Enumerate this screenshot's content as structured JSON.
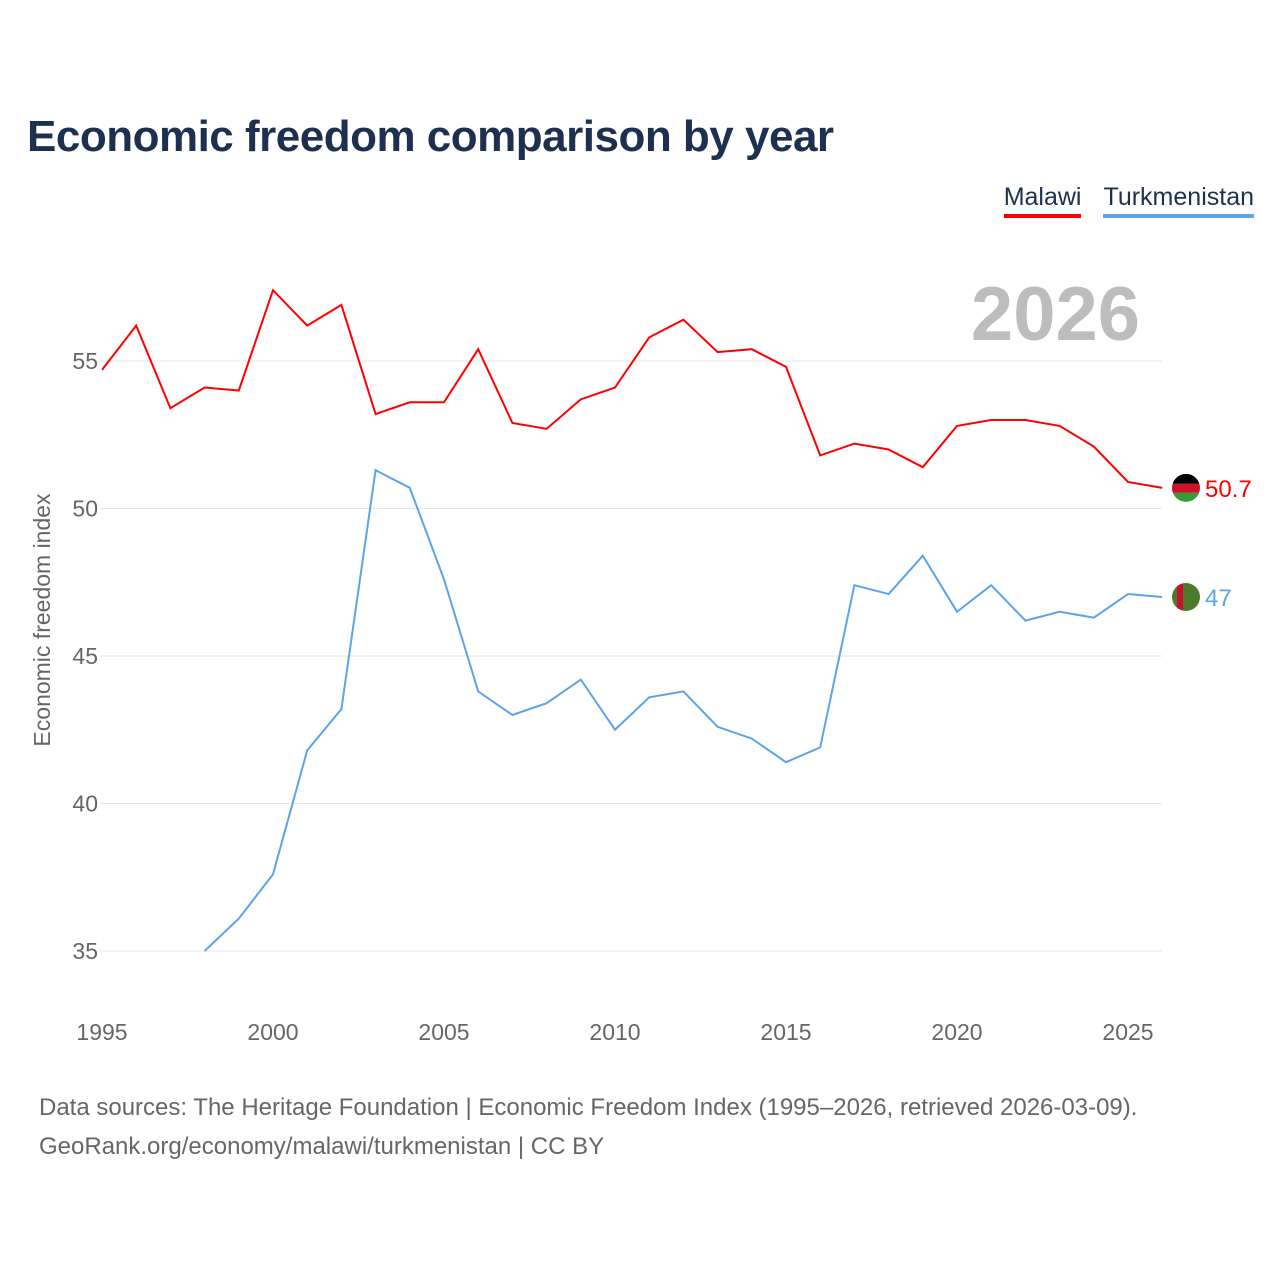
{
  "title": "Economic freedom comparison by year",
  "year_label": "2026",
  "source_line1": "Data sources: The Heritage Foundation | Economic Freedom Index (1995–2026, retrieved 2026-03-09).",
  "source_line2": "GeoRank.org/economy/malawi/turkmenistan | CC BY",
  "chart_data": {
    "type": "line",
    "title": "Economic freedom comparison by year",
    "xlabel": "",
    "ylabel": "Economic freedom index",
    "xlim": [
      1995,
      2026
    ],
    "ylim": [
      35,
      57.5
    ],
    "xticks": [
      1995,
      2000,
      2005,
      2010,
      2015,
      2020,
      2025
    ],
    "yticks": [
      35,
      40,
      45,
      50,
      55
    ],
    "grid": true,
    "legend_placement": "top-right",
    "series": [
      {
        "name": "Malawi",
        "color": "#ff0000",
        "end_label": "50.7",
        "flag": "malawi-flag",
        "x": [
          1995,
          1996,
          1997,
          1998,
          1999,
          2000,
          2001,
          2002,
          2003,
          2004,
          2005,
          2006,
          2007,
          2008,
          2009,
          2010,
          2011,
          2012,
          2013,
          2014,
          2015,
          2016,
          2017,
          2018,
          2019,
          2020,
          2021,
          2022,
          2023,
          2024,
          2025,
          2026
        ],
        "y": [
          54.7,
          56.2,
          53.4,
          54.1,
          54.0,
          57.4,
          56.2,
          56.9,
          53.2,
          53.6,
          53.6,
          55.4,
          52.9,
          52.7,
          53.7,
          54.1,
          55.8,
          56.4,
          55.3,
          55.4,
          54.8,
          51.8,
          52.2,
          52.0,
          51.4,
          52.8,
          53.0,
          53.0,
          52.8,
          52.1,
          50.9,
          50.7
        ]
      },
      {
        "name": "Turkmenistan",
        "color": "#5ba4e8",
        "end_label": "47",
        "flag": "turkmenistan-flag",
        "x": [
          1998,
          1999,
          2000,
          2001,
          2002,
          2003,
          2004,
          2005,
          2006,
          2007,
          2008,
          2009,
          2010,
          2011,
          2012,
          2013,
          2014,
          2015,
          2016,
          2017,
          2018,
          2019,
          2020,
          2021,
          2022,
          2023,
          2024,
          2025,
          2026
        ],
        "y": [
          35.0,
          36.1,
          37.6,
          41.8,
          43.2,
          51.3,
          50.7,
          47.6,
          43.8,
          43.0,
          43.4,
          44.2,
          42.5,
          43.6,
          43.8,
          42.6,
          42.2,
          41.4,
          41.9,
          47.4,
          47.1,
          48.4,
          46.5,
          47.4,
          46.2,
          46.5,
          46.3,
          47.1,
          47.0
        ]
      }
    ]
  }
}
